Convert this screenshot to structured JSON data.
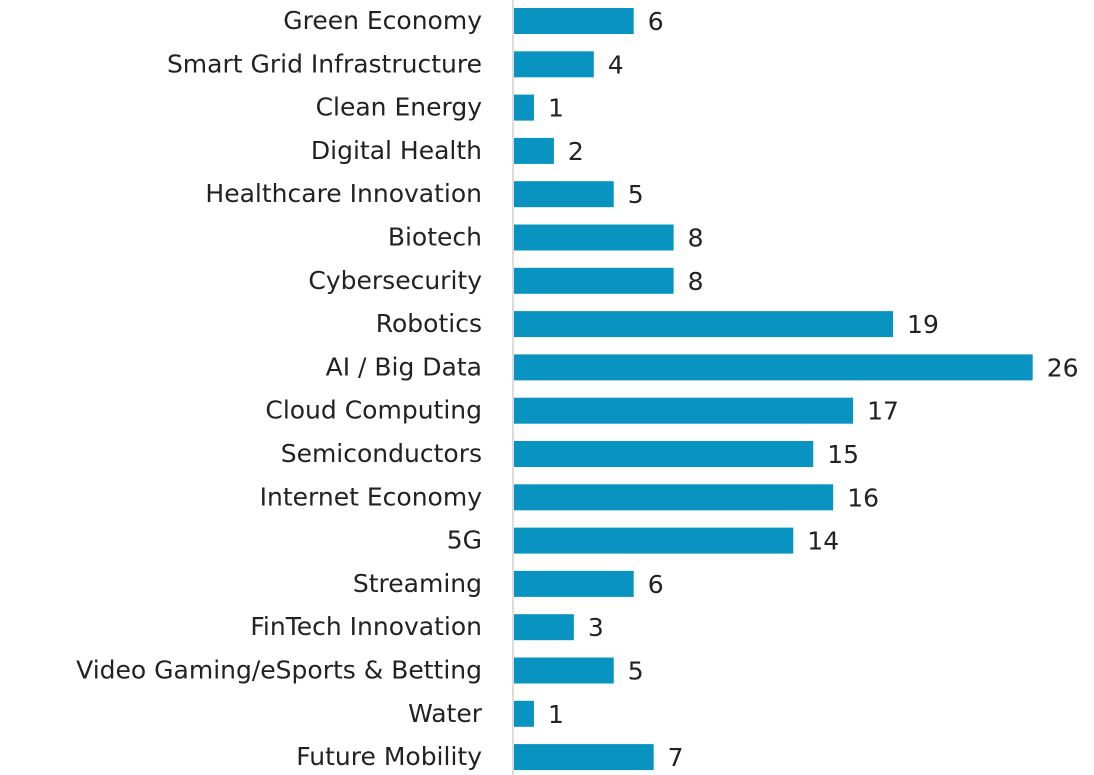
{
  "chart_data": {
    "type": "barh",
    "color": "#0893c0",
    "categories": [
      "Green Economy",
      "Smart Grid Infrastructure",
      "Clean Energy",
      "Digital Health",
      "Healthcare Innovation",
      "Biotech",
      "Cybersecurity",
      "Robotics",
      "AI / Big Data",
      "Cloud Computing",
      "Semiconductors",
      "Internet Economy",
      "5G",
      "Streaming",
      "FinTech Innovation",
      "Video Gaming/eSports & Betting",
      "Water",
      "Future Mobility"
    ],
    "values": [
      6,
      4,
      1,
      2,
      5,
      8,
      8,
      19,
      26,
      17,
      15,
      16,
      14,
      6,
      3,
      5,
      1,
      7
    ]
  }
}
